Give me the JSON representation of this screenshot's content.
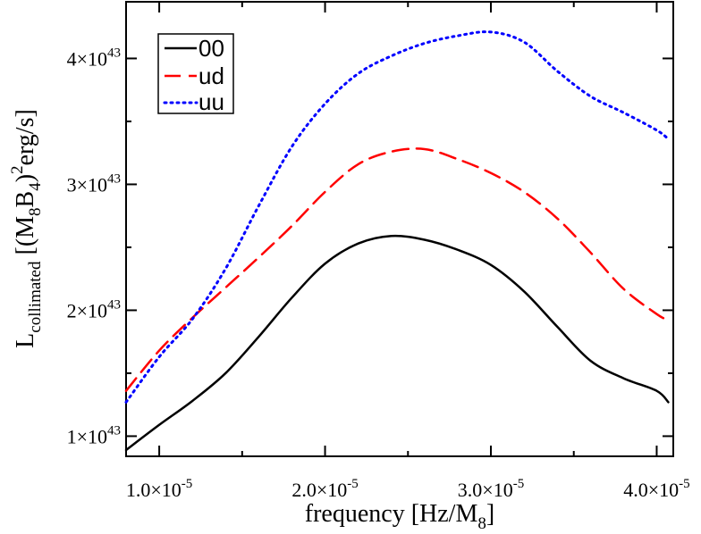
{
  "chart_data": {
    "type": "line",
    "xlabel": {
      "main": "frequency [Hz/M",
      "sub": "8",
      "tail": "]"
    },
    "ylabel": {
      "a": "L",
      "a_sub": "collimated",
      "b": " [(M",
      "b_sub": "8",
      "c": "B",
      "c_sub": "4",
      "d": ")",
      "d_sup": "2",
      "e": "erg/s]"
    },
    "xlim": [
      8e-06,
      4.1e-05
    ],
    "ylim": [
      8.4e+42,
      4.45e+43
    ],
    "x_ticks": [
      {
        "value": 1e-05,
        "mantissa": "1.0×10",
        "exp": "-5"
      },
      {
        "value": 2e-05,
        "mantissa": "2.0×10",
        "exp": "-5"
      },
      {
        "value": 3e-05,
        "mantissa": "3.0×10",
        "exp": "-5"
      },
      {
        "value": 4e-05,
        "mantissa": "4.0×10",
        "exp": "-5"
      }
    ],
    "y_ticks": [
      {
        "value": 1e+43,
        "mantissa": "1×10",
        "exp": "43"
      },
      {
        "value": 2e+43,
        "mantissa": "2×10",
        "exp": "43"
      },
      {
        "value": 3e+43,
        "mantissa": "3×10",
        "exp": "43"
      },
      {
        "value": 4e+43,
        "mantissa": "4×10",
        "exp": "43"
      }
    ],
    "legend_position": "top-left",
    "grid": false,
    "series": [
      {
        "name": "00",
        "color": "#000000",
        "dash": "solid",
        "x": [
          8e-06,
          1e-05,
          1.2e-05,
          1.4e-05,
          1.6e-05,
          1.8e-05,
          2e-05,
          2.2e-05,
          2.4e-05,
          2.6e-05,
          2.8e-05,
          3e-05,
          3.2e-05,
          3.4e-05,
          3.6e-05,
          3.8e-05,
          4e-05,
          4.07e-05
        ],
        "y": [
          8.9e+42,
          1.09e+43,
          1.28e+43,
          1.5e+43,
          1.79e+43,
          2.1e+43,
          2.37e+43,
          2.53e+43,
          2.59e+43,
          2.56e+43,
          2.48e+43,
          2.36e+43,
          2.15e+43,
          1.87e+43,
          1.6e+43,
          1.46e+43,
          1.36e+43,
          1.27e+43
        ]
      },
      {
        "name": "ud",
        "color": "#ff0000",
        "dash": "long",
        "x": [
          8e-06,
          1e-05,
          1.2e-05,
          1.4e-05,
          1.6e-05,
          1.8e-05,
          2e-05,
          2.2e-05,
          2.4e-05,
          2.6e-05,
          2.8e-05,
          3e-05,
          3.2e-05,
          3.4e-05,
          3.6e-05,
          3.8e-05,
          4e-05,
          4.07e-05
        ],
        "y": [
          1.36e+43,
          1.68e+43,
          1.94e+43,
          2.18e+43,
          2.42e+43,
          2.67e+43,
          2.94e+43,
          3.16e+43,
          3.26e+43,
          3.28e+43,
          3.2e+43,
          3.09e+43,
          2.94e+43,
          2.73e+43,
          2.46e+43,
          2.17e+43,
          1.97e+43,
          1.92e+43
        ]
      },
      {
        "name": "uu",
        "color": "#0000ff",
        "dash": "dotted",
        "x": [
          8e-06,
          1e-05,
          1.2e-05,
          1.4e-05,
          1.6e-05,
          1.8e-05,
          2e-05,
          2.2e-05,
          2.4e-05,
          2.6e-05,
          2.8e-05,
          3e-05,
          3.2e-05,
          3.4e-05,
          3.6e-05,
          3.8e-05,
          4e-05,
          4.07e-05
        ],
        "y": [
          1.27e+43,
          1.63e+43,
          1.93e+43,
          2.33e+43,
          2.83e+43,
          3.3e+43,
          3.64e+43,
          3.88e+43,
          4.02e+43,
          4.12e+43,
          4.18e+43,
          4.21e+43,
          4.13e+43,
          3.9e+43,
          3.7e+43,
          3.57e+43,
          3.43e+43,
          3.36e+43
        ]
      }
    ]
  }
}
